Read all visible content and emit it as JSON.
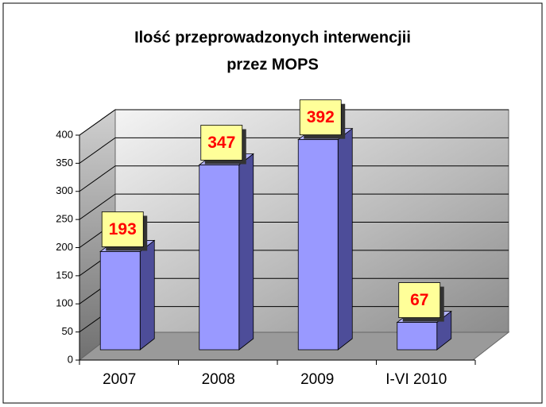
{
  "chart_data": {
    "type": "bar3d",
    "title": [
      "Ilość przeprowadzonych interwencjii",
      "przez MOPS"
    ],
    "categories": [
      "2007",
      "2008",
      "2009",
      "I-VI 2010"
    ],
    "values": [
      193,
      347,
      392,
      67
    ],
    "color": "#9999ff",
    "label_color": "#ff0000",
    "label_box_color": "#ffff99",
    "ylim": [
      0,
      400
    ],
    "yticks": [
      0,
      50,
      100,
      150,
      200,
      250,
      300,
      350,
      400
    ],
    "grid": true
  }
}
